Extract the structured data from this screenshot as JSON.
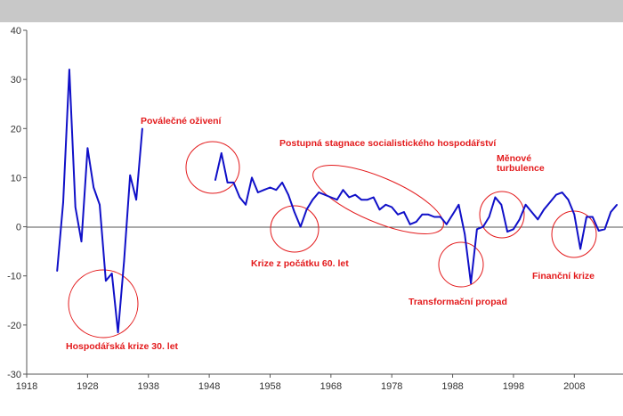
{
  "chart_data": {
    "type": "line",
    "title": "",
    "xlabel": "",
    "ylabel": "",
    "xlim": [
      1918,
      2016
    ],
    "ylim": [
      -30,
      40
    ],
    "x_ticks": [
      "1918",
      "1928",
      "1938",
      "1948",
      "1958",
      "1968",
      "1978",
      "1988",
      "1998",
      "2008"
    ],
    "y_ticks": [
      "40",
      "30",
      "20",
      "10",
      "0",
      "-10",
      "-20",
      "-30"
    ],
    "grid": false,
    "series_color": "#1010c8",
    "annotation_color": "#e31a1c",
    "series": [
      {
        "segments": [
          {
            "x": [
              1923,
              1924,
              1925,
              1926,
              1927,
              1928,
              1929,
              1930,
              1931,
              1932,
              1933,
              1934,
              1935,
              1936,
              1937
            ],
            "y": [
              -9,
              5,
              32,
              4,
              -3,
              16,
              8,
              4.5,
              -11,
              -9.5,
              -21.5,
              -7,
              10.5,
              5.5,
              20
            ]
          },
          {
            "x": [
              1949,
              1950,
              1951,
              1952,
              1953,
              1954,
              1955,
              1956,
              1957,
              1958,
              1959,
              1960,
              1961,
              1962,
              1963,
              1964,
              1965,
              1966,
              1967,
              1968,
              1969,
              1970,
              1971,
              1972,
              1973,
              1974,
              1975,
              1976,
              1977,
              1978,
              1979,
              1980,
              1981,
              1982,
              1983,
              1984,
              1985,
              1986,
              1987,
              1988,
              1989,
              1990,
              1991,
              1992,
              1993,
              1994,
              1995,
              1996,
              1997,
              1998,
              1999,
              2000,
              2001,
              2002,
              2003,
              2004,
              2005,
              2006,
              2007,
              2008,
              2009,
              2010,
              2011,
              2012,
              2013,
              2014,
              2015
            ],
            "y": [
              9.5,
              15,
              9,
              9,
              6,
              4.5,
              10,
              7,
              7.5,
              8,
              7.5,
              9,
              6.5,
              3,
              0,
              3.5,
              5.5,
              7,
              6.5,
              6,
              5.5,
              7.5,
              6,
              6.5,
              5.5,
              5.5,
              6,
              3.5,
              4.5,
              4,
              2.5,
              3,
              0.5,
              1,
              2.5,
              2.5,
              2,
              2,
              0.5,
              2.5,
              4.5,
              -1.5,
              -11.5,
              -0.5,
              0,
              2,
              6,
              4.5,
              -1,
              -0.5,
              1.5,
              4.5,
              3,
              1.5,
              3.5,
              5,
              6.5,
              7,
              5.5,
              2.5,
              -4.5,
              2,
              2,
              -0.8,
              -0.5,
              3,
              4.5
            ]
          }
        ]
      }
    ],
    "annotations": [
      {
        "text": "Poválečné oživení"
      },
      {
        "text": "Postupná stagnace socialistického  hospodářství"
      },
      {
        "text": "Měnové"
      },
      {
        "text": "turbulence"
      },
      {
        "text": "Krize z počátku 60. let"
      },
      {
        "text": "Transformační propad"
      },
      {
        "text": "Finanční krize"
      },
      {
        "text": "Hospodářská krize 30. let"
      }
    ]
  }
}
